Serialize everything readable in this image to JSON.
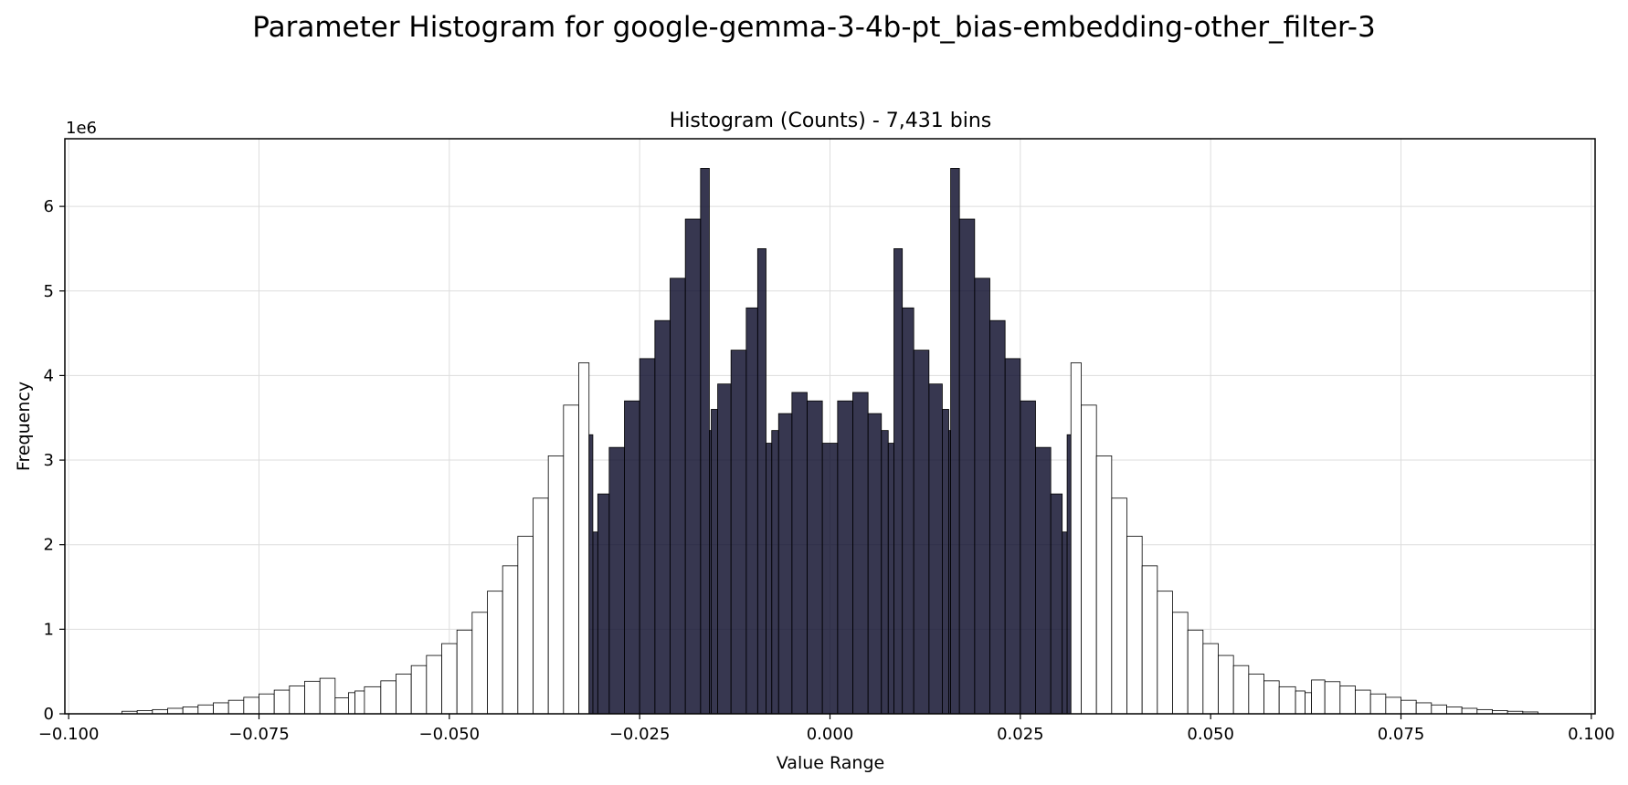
{
  "chart_data": {
    "type": "bar",
    "title": "Parameter Histogram for google-gemma-3-4b-pt_bias-embedding-other_filter-3",
    "subtitle": "Histogram (Counts) - 7,431 bins",
    "xlabel": "Value Range",
    "ylabel": "Frequency",
    "y_offset_label": "1e6",
    "xlim": [
      -0.1005,
      0.1005
    ],
    "ylim": [
      0,
      6800000
    ],
    "x_ticks": [
      -0.1,
      -0.075,
      -0.05,
      -0.025,
      0.0,
      0.025,
      0.05,
      0.075,
      0.1
    ],
    "x_tick_labels": [
      "−0.100",
      "−0.075",
      "−0.050",
      "−0.025",
      "0.000",
      "0.025",
      "0.050",
      "0.075",
      "0.100"
    ],
    "y_ticks": [
      0,
      1000000,
      2000000,
      3000000,
      4000000,
      5000000,
      6000000
    ],
    "y_tick_labels": [
      "0",
      "1",
      "2",
      "3",
      "4",
      "5",
      "6"
    ],
    "grid": true,
    "colors": {
      "edge": "#000000",
      "dark_fill": "#0b0b2a",
      "grid": "#dddddd"
    },
    "x": [
      -0.092,
      -0.09,
      -0.088,
      -0.086,
      -0.084,
      -0.082,
      -0.08,
      -0.078,
      -0.076,
      -0.074,
      -0.072,
      -0.07,
      -0.068,
      -0.066,
      -0.064,
      -0.0625,
      -0.0623,
      -0.06,
      -0.058,
      -0.056,
      -0.054,
      -0.052,
      -0.05,
      -0.048,
      -0.046,
      -0.044,
      -0.042,
      -0.04,
      -0.038,
      -0.036,
      -0.034,
      -0.032,
      -0.0313,
      -0.031,
      -0.03,
      -0.028,
      -0.026,
      -0.024,
      -0.022,
      -0.02,
      -0.018,
      -0.016,
      -0.0157,
      -0.0155,
      -0.014,
      -0.012,
      -0.01,
      -0.009,
      -0.0078,
      -0.0075,
      -0.006,
      -0.004,
      -0.002,
      0.0,
      0.002,
      0.004,
      0.006,
      0.0075,
      0.0078,
      0.009,
      0.01,
      0.012,
      0.014,
      0.0155,
      0.0157,
      0.016,
      0.018,
      0.02,
      0.022,
      0.024,
      0.026,
      0.028,
      0.03,
      0.031,
      0.0313,
      0.032,
      0.034,
      0.036,
      0.038,
      0.04,
      0.042,
      0.044,
      0.046,
      0.048,
      0.05,
      0.052,
      0.054,
      0.056,
      0.058,
      0.06,
      0.0623,
      0.0625,
      0.064,
      0.066,
      0.068,
      0.07,
      0.072,
      0.074,
      0.076,
      0.078,
      0.08,
      0.082,
      0.084,
      0.086,
      0.088,
      0.09,
      0.092
    ],
    "values": [
      30000,
      38000,
      50000,
      65000,
      82000,
      105000,
      130000,
      160000,
      195000,
      235000,
      280000,
      330000,
      385000,
      420000,
      190000,
      250000,
      270000,
      320000,
      390000,
      470000,
      570000,
      690000,
      830000,
      990000,
      1200000,
      1450000,
      1750000,
      2100000,
      2550000,
      3050000,
      3650000,
      4150000,
      3300000,
      2150000,
      2600000,
      3150000,
      3700000,
      4200000,
      4650000,
      5150000,
      5850000,
      6450000,
      3350000,
      3600000,
      3900000,
      4300000,
      4800000,
      5500000,
      3200000,
      3350000,
      3550000,
      3800000,
      3700000,
      3200000,
      3700000,
      3800000,
      3550000,
      3350000,
      3200000,
      5500000,
      4800000,
      4300000,
      3900000,
      3600000,
      3350000,
      6450000,
      5850000,
      5150000,
      4650000,
      4200000,
      3700000,
      3150000,
      2600000,
      2150000,
      3300000,
      4150000,
      3650000,
      3050000,
      2550000,
      2100000,
      1750000,
      1450000,
      1200000,
      990000,
      830000,
      690000,
      570000,
      470000,
      390000,
      320000,
      270000,
      250000,
      400000,
      380000,
      330000,
      280000,
      235000,
      195000,
      160000,
      130000,
      105000,
      82000,
      65000,
      50000,
      38000,
      30000,
      22000
    ]
  }
}
